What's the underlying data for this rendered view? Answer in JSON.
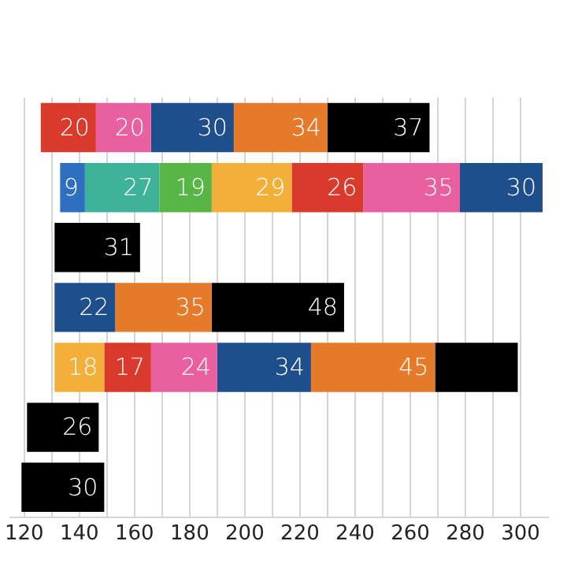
{
  "chart_data": {
    "type": "bar",
    "orientation": "horizontal",
    "categories": [
      null,
      null,
      null,
      null,
      null,
      null,
      null
    ],
    "series": [
      {
        "colors": [
          "#d93a2b",
          "#2f6fc0",
          "#000000",
          "#1f4e8c",
          "#f2b03a",
          "#000000",
          "#000000"
        ],
        "base": [
          126,
          133,
          131,
          131,
          131,
          121,
          119
        ],
        "values": [
          20,
          9,
          31,
          22,
          18,
          26,
          30
        ],
        "value_labels": [
          "20",
          "9",
          "31",
          "22",
          "18",
          "26",
          "30"
        ]
      },
      {
        "colors": [
          "#e8609f",
          "#3fb39a",
          "#000000",
          "#e57a2a",
          "#d93a2b",
          "#000000",
          "#000000"
        ],
        "base": [
          146,
          142,
          null,
          153,
          149,
          null,
          null
        ],
        "values": [
          20,
          27,
          null,
          35,
          17,
          null,
          null
        ],
        "value_labels": [
          "20",
          "27",
          null,
          "35",
          "17",
          null,
          null
        ]
      },
      {
        "colors": [
          "#1f4e8c",
          "#57b646",
          "#000000",
          "#000000",
          "#e8609f",
          "#000000",
          "#000000"
        ],
        "base": [
          166,
          169,
          null,
          188,
          166,
          null,
          null
        ],
        "values": [
          30,
          19,
          null,
          48,
          24,
          null,
          null
        ],
        "value_labels": [
          "30",
          "19",
          null,
          "48",
          "24",
          null,
          null
        ]
      },
      {
        "colors": [
          "#e57a2a",
          "#f2b03a",
          "#000000",
          "#000000",
          "#1f4e8c",
          "#000000",
          "#000000"
        ],
        "base": [
          196,
          188,
          null,
          null,
          190,
          null,
          null
        ],
        "values": [
          34,
          29,
          null,
          null,
          34,
          null,
          null
        ],
        "value_labels": [
          "34",
          "29",
          null,
          null,
          "34",
          null,
          null
        ]
      },
      {
        "colors": [
          "#000000",
          "#d93a2b",
          "#000000",
          "#000000",
          "#e57a2a",
          "#000000",
          "#000000"
        ],
        "base": [
          230,
          217,
          null,
          null,
          224,
          null,
          null
        ],
        "values": [
          37,
          26,
          null,
          null,
          45,
          null,
          null
        ],
        "value_labels": [
          "37",
          "26",
          null,
          null,
          "45",
          null,
          null
        ]
      },
      {
        "colors": [
          "#000000",
          "#e8609f",
          "#000000",
          "#000000",
          "#000000",
          "#000000",
          "#000000"
        ],
        "base": [
          null,
          243,
          null,
          null,
          269,
          null,
          null
        ],
        "values": [
          null,
          35,
          null,
          null,
          30,
          null,
          null
        ],
        "value_labels": [
          null,
          "35",
          null,
          null,
          null,
          null,
          null
        ]
      },
      {
        "colors": [
          "#000000",
          "#1f4e8c",
          "#000000",
          "#000000",
          "#000000",
          "#000000",
          "#000000"
        ],
        "base": [
          null,
          278,
          null,
          null,
          null,
          null,
          null
        ],
        "values": [
          null,
          30,
          null,
          null,
          null,
          null,
          null
        ],
        "value_labels": [
          null,
          "30",
          null,
          null,
          null,
          null,
          null
        ]
      }
    ],
    "xlim": [
      115,
      310
    ],
    "xticks": [
      {
        "value": 120,
        "label": "120"
      },
      {
        "value": 130,
        "label": null
      },
      140,
      {
        "value": 150,
        "label": null
      },
      160,
      {
        "value": 170,
        "label": null
      },
      180,
      {
        "value": 190,
        "label": null
      },
      200,
      {
        "value": 210,
        "label": null
      },
      220,
      {
        "value": 230,
        "label": null
      },
      240,
      {
        "value": 250,
        "label": null
      },
      260,
      {
        "value": 270,
        "label": null
      },
      280,
      {
        "value": 290,
        "label": null
      },
      300
    ],
    "grid": "x",
    "tick_labels": "x"
  }
}
